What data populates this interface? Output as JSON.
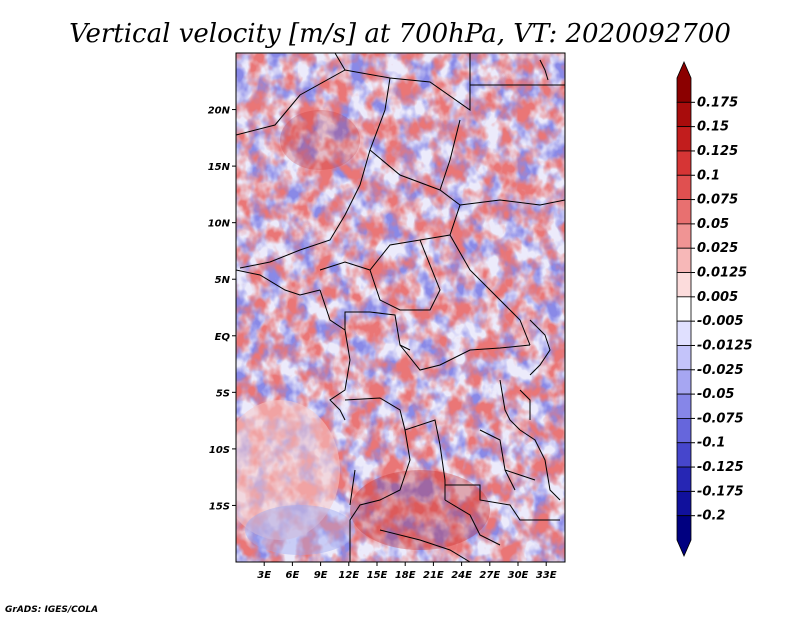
{
  "chart_data": {
    "type": "heatmap",
    "title": "Vertical velocity [m/s] at 700hPa, VT: 2020092700",
    "xlabel": "",
    "ylabel": "",
    "x_ticks": [
      "3E",
      "6E",
      "9E",
      "12E",
      "15E",
      "18E",
      "21E",
      "24E",
      "27E",
      "30E",
      "33E"
    ],
    "x_tick_values": [
      3,
      6,
      9,
      12,
      15,
      18,
      21,
      24,
      27,
      30,
      33
    ],
    "y_ticks": [
      "20N",
      "15N",
      "10N",
      "5N",
      "EQ",
      "5S",
      "10S",
      "15S"
    ],
    "y_tick_values": [
      20,
      15,
      10,
      5,
      0,
      -5,
      -10,
      -15
    ],
    "xlim": [
      0,
      35
    ],
    "ylim": [
      -20,
      25
    ],
    "colorbar": {
      "labels": [
        "0.175",
        "0.15",
        "0.125",
        "0.1",
        "0.075",
        "0.05",
        "0.025",
        "0.0125",
        "0.005",
        "-0.005",
        "-0.0125",
        "-0.025",
        "-0.05",
        "-0.075",
        "-0.1",
        "-0.125",
        "-0.175",
        "-0.2"
      ],
      "colors": [
        "#8b0000",
        "#a80c0c",
        "#c21d1d",
        "#d63535",
        "#e05050",
        "#e87070",
        "#f09494",
        "#f7b8b8",
        "#fcdcdc",
        "#ffffff",
        "#e0e0ff",
        "#c4c4fa",
        "#a6a6f2",
        "#8686e8",
        "#6666dc",
        "#4646cc",
        "#2626b4",
        "#10109c",
        "#000080"
      ]
    },
    "grid": false
  },
  "credit": "GrADS: IGES/COLA"
}
